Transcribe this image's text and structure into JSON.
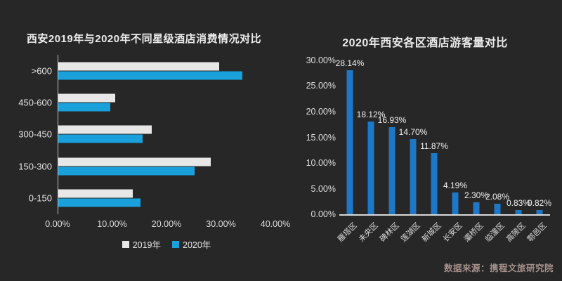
{
  "page": {
    "background_color": "#272727",
    "source_note": "数据来源：携程文旅研究院",
    "source_color": "#a5908a"
  },
  "chart_data": [
    {
      "type": "bar",
      "orientation": "horizontal",
      "title": "西安2019年与2020年不同星级酒店消费情况对比",
      "categories": [
        ">600",
        "450-600",
        "300-450",
        "150-300",
        "0-150"
      ],
      "series": [
        {
          "name": "2019年",
          "color": "#e7e7e7",
          "values": [
            29.5,
            10.4,
            17.1,
            28.0,
            13.7
          ]
        },
        {
          "name": "2020年",
          "color": "#1aa0db",
          "values": [
            33.8,
            9.5,
            15.5,
            25.0,
            15.1
          ]
        }
      ],
      "x_ticks": [
        "0.00%",
        "10.00%",
        "20.00%",
        "30.00%",
        "40.00%"
      ],
      "xlim": [
        0,
        40
      ],
      "grid": false,
      "legend_position": "bottom"
    },
    {
      "type": "bar",
      "orientation": "vertical",
      "title": "2020年西安各区酒店游客量对比",
      "categories": [
        "雁塔区",
        "未央区",
        "碑林区",
        "莲湖区",
        "新城区",
        "长安区",
        "灞桥区",
        "临潼区",
        "高陵区",
        "鄠邑区"
      ],
      "values": [
        28.14,
        18.12,
        16.93,
        14.7,
        11.87,
        4.19,
        2.3,
        2.08,
        0.83,
        0.82
      ],
      "data_labels": [
        "28.14%",
        "18.12%",
        "16.93%",
        "14.70%",
        "11.87%",
        "4.19%",
        "2.30%",
        "2.08%",
        "0.83%",
        "0.82%"
      ],
      "y_ticks": [
        "30.00%",
        "25.00%",
        "20.00%",
        "15.00%",
        "10.00%",
        "5.00%",
        "0.00%"
      ],
      "ylim": [
        0,
        30
      ],
      "bar_color": "#1d78c8",
      "grid": false
    }
  ]
}
